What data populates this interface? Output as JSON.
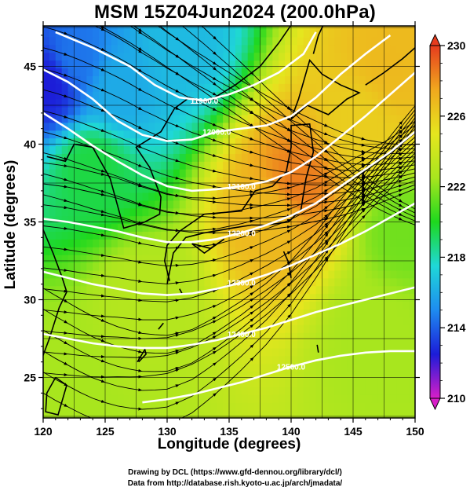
{
  "title": "MSM 15Z04Jun2024 (200.0hPa)",
  "xlabel": "Longitude (degrees)",
  "ylabel": "Latitude  (degrees)",
  "credit_line1": "Drawing by DCL (https://www.gfd-dennou.org/library/dcl/)",
  "credit_line2": "Data from http://database.rish.kyoto-u.ac.jp/arch/jmadata/",
  "chart_data": {
    "type": "heatmap",
    "variable": "temperature (K) with geopotential height contours and wind streamlines",
    "xlim": [
      120,
      150
    ],
    "ylim": [
      22.4,
      47.6
    ],
    "x_ticks": [
      120,
      125,
      130,
      135,
      140,
      145,
      150
    ],
    "y_ticks": [
      25,
      30,
      35,
      40,
      45
    ],
    "colorbar": {
      "min": 210,
      "max": 230,
      "ticks": [
        210,
        214,
        218,
        222,
        226,
        230
      ],
      "stops": [
        "#d81ec8",
        "#1c1cd8",
        "#1e8cf0",
        "#1fd8d8",
        "#1ed81e",
        "#a8e61e",
        "#e6e61e",
        "#f0a81e",
        "#e63c1e"
      ]
    },
    "contours": [
      {
        "label": "11900.0",
        "points": [
          [
            121,
            47.2
          ],
          [
            124,
            46.2
          ],
          [
            127,
            45.0
          ],
          [
            129,
            43.8
          ],
          [
            131,
            43.0
          ],
          [
            133,
            42.8
          ],
          [
            135,
            43.2
          ],
          [
            137,
            43.8
          ],
          [
            139,
            44.6
          ],
          [
            141,
            45.8
          ],
          [
            142,
            47.2
          ]
        ]
      },
      {
        "label": "12000.0",
        "points": [
          [
            120,
            44.8
          ],
          [
            122,
            44.0
          ],
          [
            124,
            42.9
          ],
          [
            126,
            41.5
          ],
          [
            128,
            40.6
          ],
          [
            130,
            40.2
          ],
          [
            132,
            40.3
          ],
          [
            134,
            40.8
          ],
          [
            136,
            41.0
          ],
          [
            138,
            41.2
          ],
          [
            140,
            41.8
          ],
          [
            142,
            43.0
          ],
          [
            144,
            44.5
          ],
          [
            146,
            45.8
          ],
          [
            148,
            47.0
          ]
        ]
      },
      {
        "label": "12100.0",
        "points": [
          [
            120,
            42.0
          ],
          [
            122,
            41.0
          ],
          [
            124,
            39.9
          ],
          [
            126,
            38.9
          ],
          [
            128,
            38.0
          ],
          [
            130,
            37.3
          ],
          [
            132,
            37.0
          ],
          [
            134,
            37.1
          ],
          [
            136,
            37.3
          ],
          [
            138,
            37.6
          ],
          [
            140,
            38.2
          ],
          [
            142,
            39.2
          ],
          [
            144,
            40.5
          ],
          [
            146,
            41.8
          ],
          [
            148,
            43.2
          ],
          [
            150,
            44.6
          ]
        ]
      },
      {
        "label": "12200.0",
        "points": [
          [
            120,
            35.2
          ],
          [
            122,
            35.0
          ],
          [
            124,
            34.7
          ],
          [
            126,
            34.4
          ],
          [
            128,
            34.0
          ],
          [
            130,
            33.7
          ],
          [
            132,
            33.7
          ],
          [
            134,
            33.9
          ],
          [
            136,
            34.3
          ],
          [
            138,
            34.8
          ],
          [
            140,
            35.4
          ],
          [
            142,
            36.2
          ],
          [
            144,
            37.3
          ],
          [
            146,
            38.4
          ],
          [
            148,
            39.5
          ],
          [
            150,
            40.8
          ]
        ]
      },
      {
        "label": "12300.0",
        "points": [
          [
            120,
            31.8
          ],
          [
            122,
            31.4
          ],
          [
            124,
            31.0
          ],
          [
            126,
            30.7
          ],
          [
            128,
            30.4
          ],
          [
            130,
            30.3
          ],
          [
            132,
            30.4
          ],
          [
            134,
            30.7
          ],
          [
            136,
            31.1
          ],
          [
            138,
            31.6
          ],
          [
            140,
            32.2
          ],
          [
            142,
            32.9
          ],
          [
            144,
            33.6
          ],
          [
            146,
            34.4
          ],
          [
            148,
            35.3
          ],
          [
            150,
            36.2
          ]
        ]
      },
      {
        "label": "12400.0",
        "points": [
          [
            120,
            27.8
          ],
          [
            122,
            27.5
          ],
          [
            124,
            27.2
          ],
          [
            126,
            27.0
          ],
          [
            128,
            26.9
          ],
          [
            130,
            26.9
          ],
          [
            132,
            27.1
          ],
          [
            134,
            27.4
          ],
          [
            136,
            27.8
          ],
          [
            138,
            28.2
          ],
          [
            140,
            28.7
          ],
          [
            142,
            29.2
          ],
          [
            144,
            29.6
          ],
          [
            146,
            30.0
          ],
          [
            148,
            30.4
          ],
          [
            150,
            30.8
          ]
        ]
      },
      {
        "label": "12500.0",
        "points": [
          [
            128,
            23.4
          ],
          [
            130,
            23.6
          ],
          [
            132,
            23.9
          ],
          [
            134,
            24.3
          ],
          [
            136,
            24.7
          ],
          [
            138,
            25.2
          ],
          [
            140,
            25.7
          ],
          [
            142,
            26.1
          ],
          [
            144,
            26.4
          ],
          [
            146,
            26.6
          ],
          [
            148,
            26.7
          ],
          [
            150,
            26.7
          ]
        ]
      }
    ],
    "temperature_features": [
      {
        "lon": 140.5,
        "lat": 37.5,
        "value": 228.5
      },
      {
        "lon": 138.5,
        "lat": 35.5,
        "value": 226.8
      },
      {
        "lon": 145.5,
        "lat": 41.5,
        "value": 226.0
      },
      {
        "lon": 148.0,
        "lat": 45.0,
        "value": 226.8
      },
      {
        "lon": 122.5,
        "lat": 45.5,
        "value": 214.5
      },
      {
        "lon": 120.5,
        "lat": 44.0,
        "value": 212.5
      },
      {
        "lon": 126.0,
        "lat": 43.5,
        "value": 216.0
      },
      {
        "lon": 131.0,
        "lat": 46.5,
        "value": 216.5
      },
      {
        "lon": 124.0,
        "lat": 38.5,
        "value": 219.5
      },
      {
        "lon": 128.0,
        "lat": 30.0,
        "value": 223.0
      },
      {
        "lon": 121.0,
        "lat": 25.0,
        "value": 222.5
      },
      {
        "lon": 147.0,
        "lat": 28.0,
        "value": 222.5
      },
      {
        "lon": 149.0,
        "lat": 34.5,
        "value": 221.5
      }
    ]
  }
}
